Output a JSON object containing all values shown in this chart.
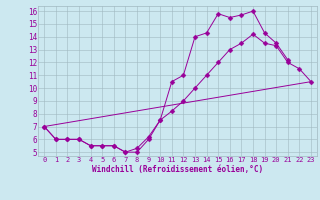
{
  "xlabel": "Windchill (Refroidissement éolien,°C)",
  "bg_color": "#cce8f0",
  "line_color": "#990099",
  "grid_color": "#a0b8c0",
  "xlim": [
    -0.5,
    23.5
  ],
  "ylim": [
    4.7,
    16.4
  ],
  "yticks": [
    5,
    6,
    7,
    8,
    9,
    10,
    11,
    12,
    13,
    14,
    15,
    16
  ],
  "xticks": [
    0,
    1,
    2,
    3,
    4,
    5,
    6,
    7,
    8,
    9,
    10,
    11,
    12,
    13,
    14,
    15,
    16,
    17,
    18,
    19,
    20,
    21,
    22,
    23
  ],
  "curve1_x": [
    0,
    1,
    2,
    3,
    4,
    5,
    6,
    7,
    8,
    9,
    10,
    11,
    12,
    13,
    14,
    15,
    16,
    17,
    18,
    19,
    20,
    21
  ],
  "curve1_y": [
    7,
    6,
    6,
    6,
    5.5,
    5.5,
    5.5,
    5,
    5,
    6.0,
    7.5,
    10.5,
    11.0,
    14.0,
    14.3,
    15.8,
    15.5,
    15.7,
    16.0,
    14.3,
    13.5,
    12.2
  ],
  "curve2_x": [
    0,
    1,
    2,
    3,
    4,
    5,
    6,
    7,
    8,
    9,
    10,
    11,
    12,
    13,
    14,
    15,
    16,
    17,
    18,
    19,
    20,
    21,
    22,
    23
  ],
  "curve2_y": [
    7,
    6,
    6,
    6,
    5.5,
    5.5,
    5.5,
    5.0,
    5.3,
    6.2,
    7.5,
    8.2,
    9.0,
    10.0,
    11.0,
    12.0,
    13.0,
    13.5,
    14.2,
    13.5,
    13.3,
    12.0,
    11.5,
    10.5
  ],
  "curve3_x": [
    0,
    23
  ],
  "curve3_y": [
    7,
    10.5
  ]
}
